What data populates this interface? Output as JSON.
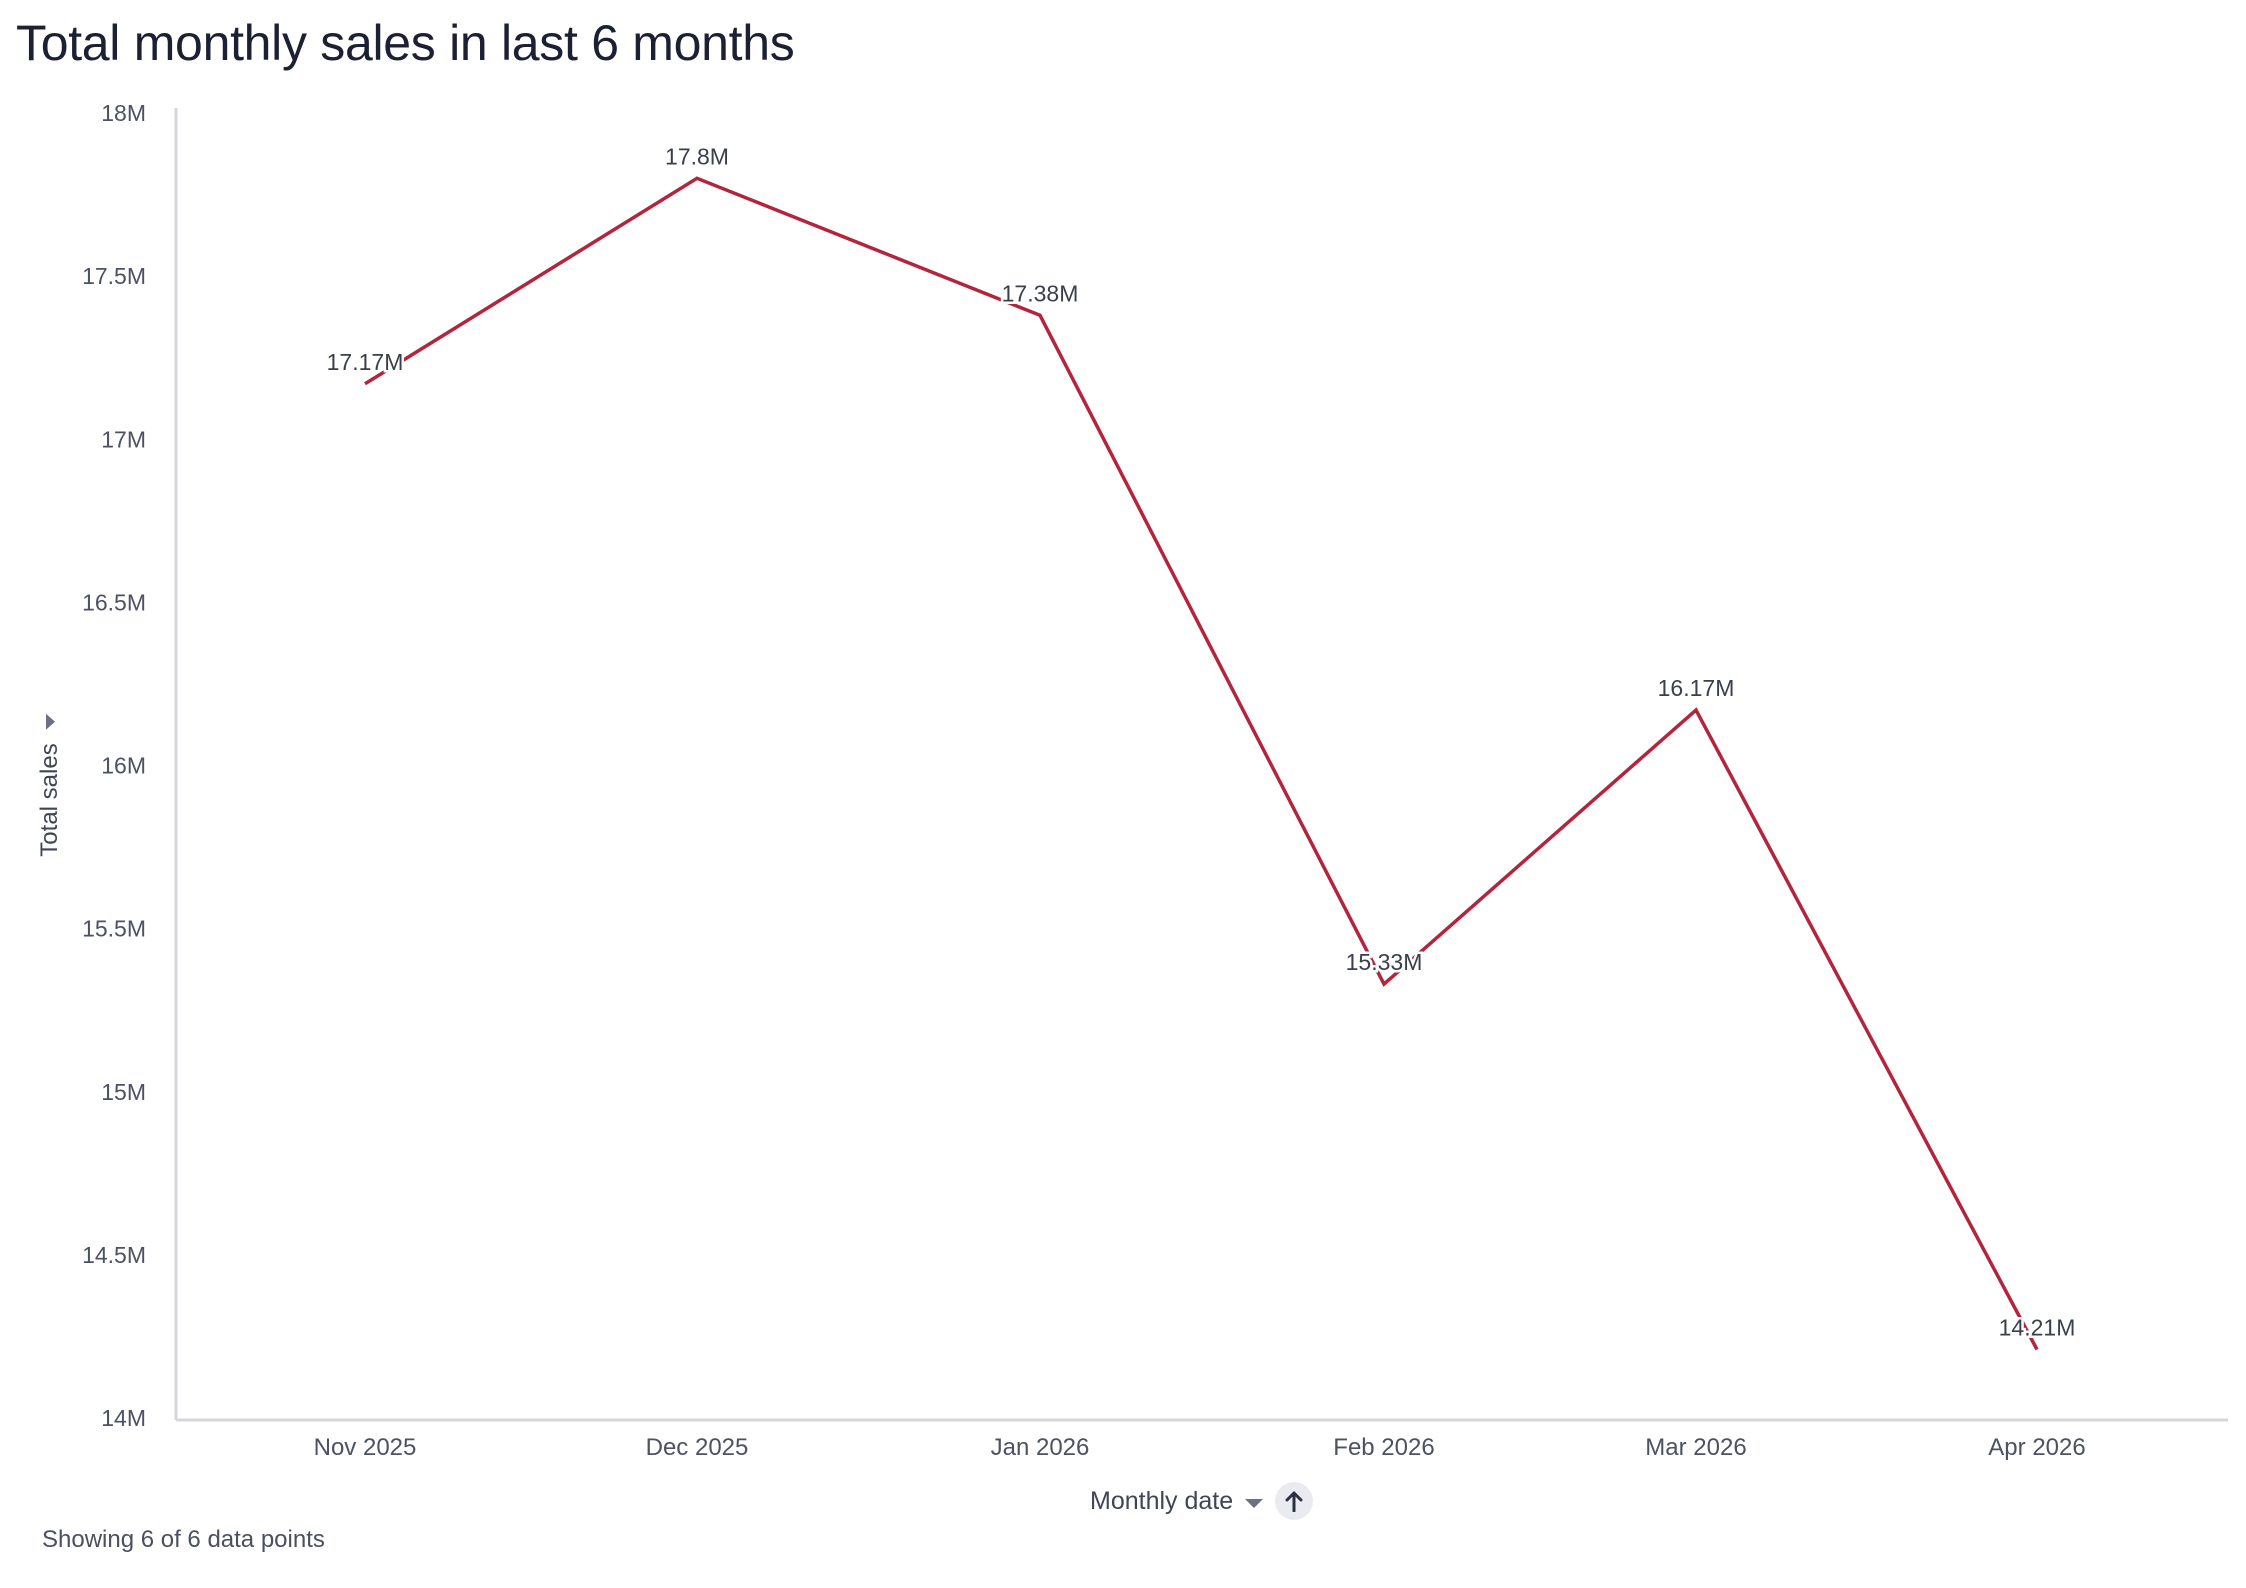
{
  "title": "Total monthly sales in last 6 months",
  "x_axis": {
    "label": "Monthly date"
  },
  "y_axis": {
    "label": "Total sales"
  },
  "footer": "Showing 6 of 6 data points",
  "colors": {
    "line": "#b3253c",
    "axis": "#d5d7dd",
    "tick_text": "#4c5263",
    "data_label": "#3a3f4c"
  },
  "icons": {
    "x_axis_menu": "caret-down-icon",
    "sort": "arrow-up-icon",
    "y_axis_menu": "caret-down-icon"
  },
  "chart_data": {
    "type": "line",
    "title": "Total monthly sales in last 6 months",
    "xlabel": "Monthly date",
    "ylabel": "Total sales",
    "categories": [
      "Nov 2025",
      "Dec 2025",
      "Jan 2026",
      "Feb 2026",
      "Mar 2026",
      "Apr 2026"
    ],
    "series": [
      {
        "values": [
          17170000,
          17800000,
          17380000,
          15330000,
          16170000,
          14210000
        ],
        "labels": [
          "17.17M",
          "17.8M",
          "17.38M",
          "15.33M",
          "16.17M",
          "14.21M"
        ]
      }
    ],
    "ylim": [
      14000000,
      18000000
    ],
    "y_ticks": [
      14000000,
      14500000,
      15000000,
      15500000,
      16000000,
      16500000,
      17000000,
      17500000,
      18000000
    ],
    "y_tick_labels": [
      "14M",
      "14.5M",
      "15M",
      "15.5M",
      "16M",
      "16.5M",
      "17M",
      "17.5M",
      "18M"
    ],
    "grid": false,
    "legend": "none"
  }
}
